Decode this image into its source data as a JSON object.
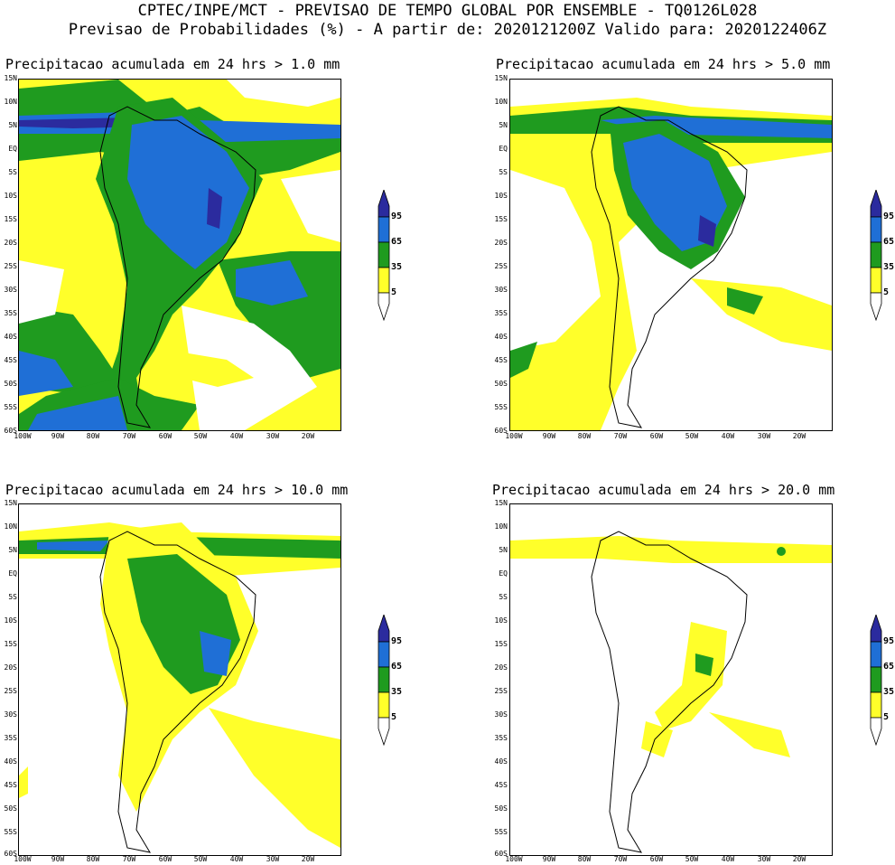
{
  "header": {
    "line1": "CPTEC/INPE/MCT - PREVISAO DE TEMPO GLOBAL POR ENSEMBLE - TQ0126L028",
    "line2": "Previsao de Probabilidades (%) -  A partir de: 2020121200Z  Valido para: 2020122406Z"
  },
  "panels": [
    {
      "title": "Precipitacao acumulada em 24 hrs > 1.0 mm"
    },
    {
      "title": "Precipitacao acumulada em 24 hrs > 5.0 mm"
    },
    {
      "title": "Precipitacao acumulada em 24 hrs > 10.0 mm"
    },
    {
      "title": "Precipitacao acumulada em 24 hrs > 20.0 mm"
    }
  ],
  "lat_labels": [
    "15N",
    "10N",
    "5N",
    "EQ",
    "5S",
    "10S",
    "15S",
    "20S",
    "25S",
    "30S",
    "35S",
    "40S",
    "45S",
    "50S",
    "55S",
    "60S"
  ],
  "lon_labels": [
    "100W",
    "90W",
    "80W",
    "70W",
    "60W",
    "50W",
    "40W",
    "30W",
    "20W"
  ],
  "colorbar": {
    "labels": [
      "95",
      "65",
      "35",
      "5"
    ],
    "colors": {
      "c95": "#2b2b9e",
      "c65": "#1f6fd6",
      "c35": "#1f9b1f",
      "c5": "#ffff2a"
    }
  }
}
